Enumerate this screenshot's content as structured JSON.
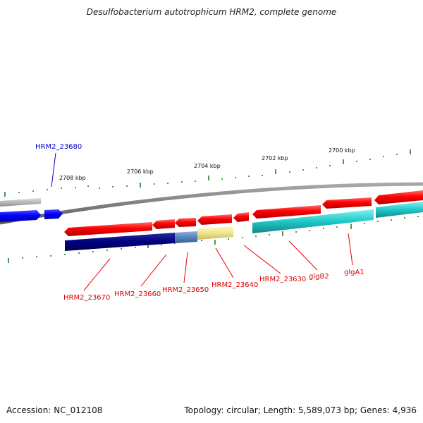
{
  "title": "Desulfobacterium autotrophicum HRM2, complete genome",
  "footer": {
    "accession": "Accession: NC_012108",
    "summary": "Topology: circular; Length: 5,589,073 bp; Genes: 4,936"
  },
  "scale_labels": [
    "2708 kbp",
    "2706 kbp",
    "2704 kbp",
    "2702 kbp",
    "2700 kbp"
  ],
  "genes": {
    "forward_label": "HRM2_23680",
    "reverse_labels": [
      "HRM2_23670",
      "HRM2_23660",
      "HRM2_23650",
      "HRM2_23640",
      "HRM2_23630",
      "glgB2",
      "glgA1"
    ]
  },
  "colors": {
    "backbone": "#808080",
    "forward_gene": "#0000ee",
    "reverse_gene": "#ee0000",
    "tick": "#2a7a2a",
    "cog_navy": "#000070",
    "cog_steel": "#5080b0",
    "cog_khaki": "#f0e68c",
    "cog_cyan": "#20c8c8",
    "cog_grey": "#b0b0b0"
  }
}
